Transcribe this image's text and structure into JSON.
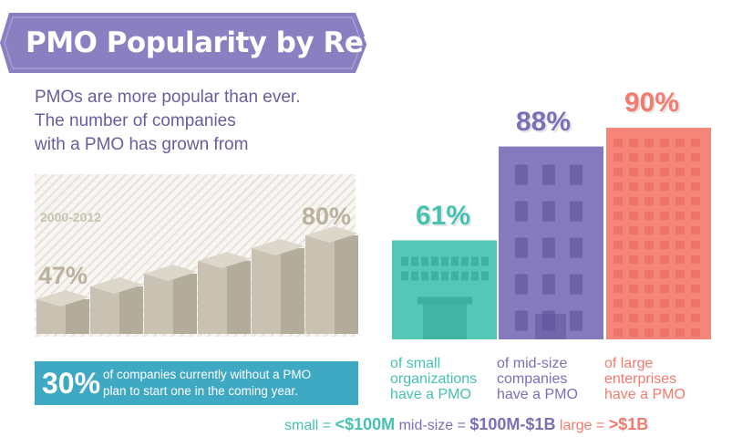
{
  "title": "PMO Popularity by Revenue",
  "intro_lines": [
    "PMOs are more popular than ever.",
    "The number of companies",
    "with a PMO has grown from"
  ],
  "growth": {
    "period": "2000-2012",
    "start_label": "47%",
    "end_label": "80%",
    "start_value": 47,
    "end_value": 80,
    "steps": 6
  },
  "banner": {
    "pct": "30%",
    "lines": [
      "of companies currently without a PMO",
      "plan to start one in the coming year."
    ]
  },
  "chart_data": {
    "type": "bar",
    "categories": [
      "small organizations",
      "mid-size companies",
      "large enterprises"
    ],
    "values": [
      61,
      88,
      90
    ],
    "value_labels": [
      "61%",
      "88%",
      "90%"
    ],
    "label_lines": [
      [
        "of small",
        "organizations",
        "have a PMO"
      ],
      [
        "of mid-size",
        "companies",
        "have a PMO"
      ],
      [
        "of large",
        "enterprises",
        "have a PMO"
      ]
    ],
    "colors": [
      "#45c2b1",
      "#7b6fb8",
      "#f47a6e"
    ],
    "ylim": [
      0,
      100
    ]
  },
  "legend": {
    "small_label": "small = ",
    "small_value": "<$100M",
    "mid_label": "mid-size = ",
    "mid_value": "$100M-$1B",
    "large_label": "large = ",
    "large_value": ">$1B"
  },
  "colors": {
    "ribbon": "#8a7fc0",
    "ribbon_dark": "#6e62a6",
    "intro_text": "#6a5d9e",
    "growth_block": "#c9c2b3",
    "banner": "#3fa8c3"
  }
}
